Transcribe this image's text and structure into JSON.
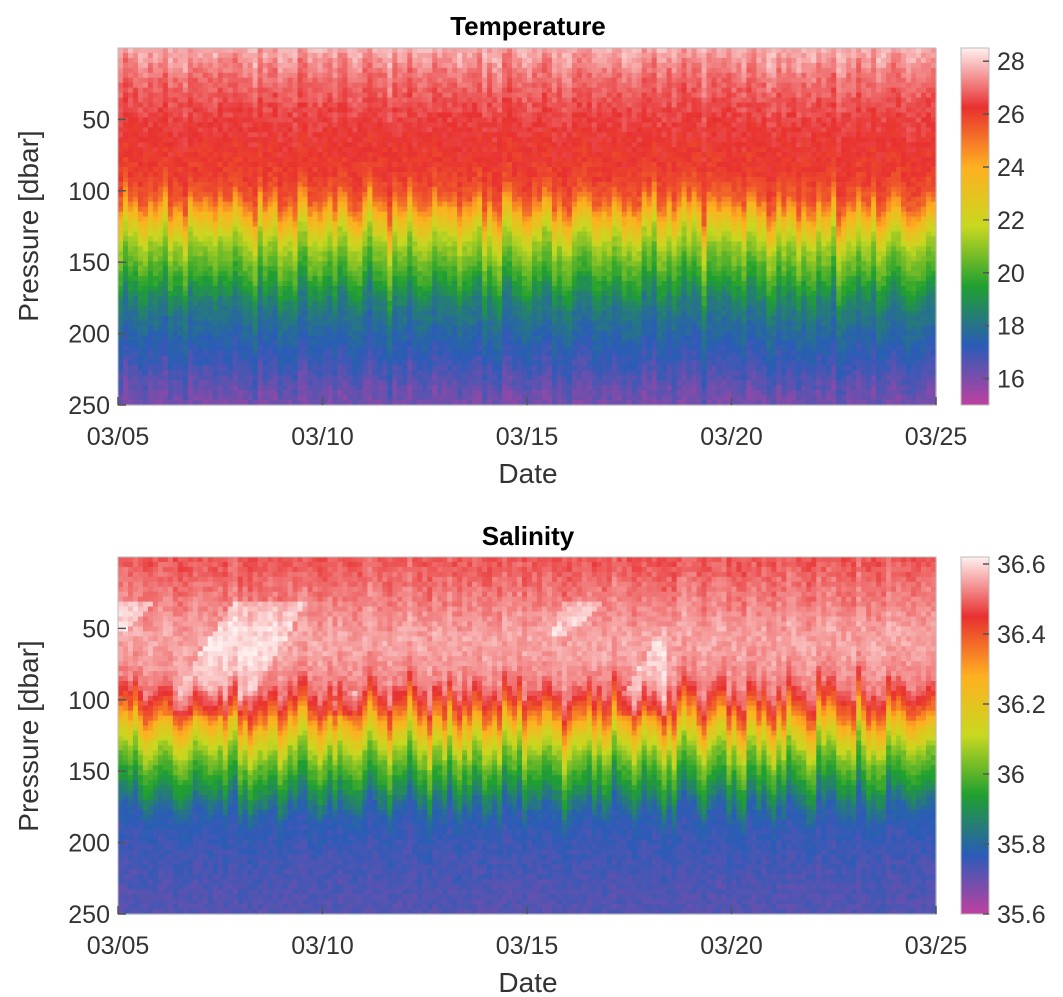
{
  "chart_data": [
    {
      "type": "heatmap",
      "title": "Temperature",
      "xlabel": "Date",
      "ylabel": "Pressure [dbar]",
      "x_ticks": [
        "03/05",
        "03/10",
        "03/15",
        "03/20",
        "03/25"
      ],
      "y_ticks": [
        50,
        100,
        150,
        200,
        250
      ],
      "ylim": [
        250,
        0
      ],
      "colorbar": {
        "ticks": [
          16,
          18,
          20,
          22,
          24,
          26,
          28
        ],
        "range": [
          15,
          28.5
        ]
      },
      "profile": {
        "pressure": [
          0,
          20,
          40,
          60,
          90,
          105,
          120,
          135,
          150,
          165,
          180,
          200,
          220,
          250
        ],
        "value": [
          27.8,
          27.0,
          26.6,
          26.3,
          26.0,
          25.5,
          23.5,
          21.5,
          20.5,
          19.5,
          18.3,
          17.6,
          17.0,
          16.0
        ]
      },
      "colors": [
        "#c040a0",
        "#2a5cb8",
        "#20a030",
        "#c8d820",
        "#ffb020",
        "#e83030",
        "#fff0f0"
      ]
    },
    {
      "type": "heatmap",
      "title": "Salinity",
      "xlabel": "Date",
      "ylabel": "Pressure [dbar]",
      "x_ticks": [
        "03/05",
        "03/10",
        "03/15",
        "03/20",
        "03/25"
      ],
      "y_ticks": [
        50,
        100,
        150,
        200,
        250
      ],
      "ylim": [
        250,
        0
      ],
      "colorbar": {
        "ticks": [
          "35.6",
          "35.8",
          "36",
          "36.2",
          "36.4",
          "36.6"
        ],
        "range": [
          35.6,
          36.62
        ]
      },
      "profile": {
        "pressure": [
          0,
          30,
          60,
          90,
          110,
          125,
          140,
          160,
          180,
          200,
          230,
          250
        ],
        "value": [
          36.48,
          36.52,
          36.56,
          36.52,
          36.36,
          36.18,
          36.04,
          35.92,
          35.78,
          35.75,
          35.73,
          35.72
        ]
      },
      "colors": [
        "#c040a0",
        "#2a5cb8",
        "#20a030",
        "#c8d820",
        "#ffb020",
        "#e83030",
        "#fff0f0"
      ]
    }
  ]
}
